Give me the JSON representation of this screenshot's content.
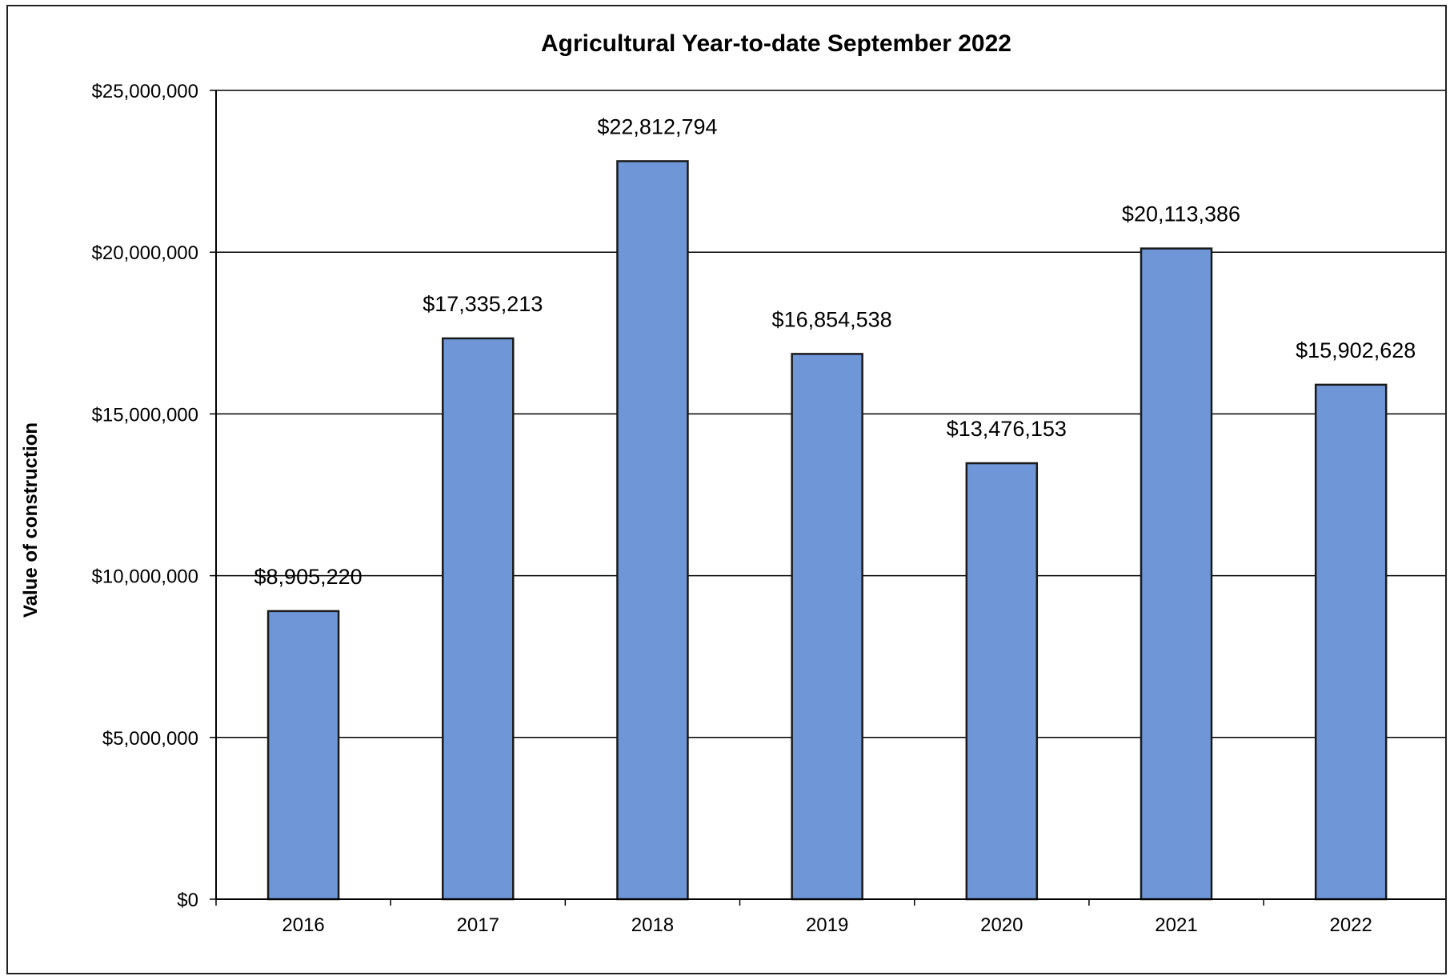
{
  "chart_data": {
    "type": "bar",
    "title": "Agricultural Year-to-date September 2022",
    "xlabel": "",
    "ylabel": "Value of construction",
    "categories": [
      "2016",
      "2017",
      "2018",
      "2019",
      "2020",
      "2021",
      "2022"
    ],
    "values": [
      8905220,
      17335213,
      22812794,
      16854538,
      13476153,
      20113386,
      15902628
    ],
    "data_labels": [
      "$8,905,220",
      "$17,335,213",
      "$22,812,794",
      "$16,854,538",
      "$13,476,153",
      "$20,113,386",
      "$15,902,628"
    ],
    "ylim": [
      0,
      25000000
    ],
    "yticks": [
      0,
      5000000,
      10000000,
      15000000,
      20000000,
      25000000
    ],
    "ytick_labels": [
      "$0",
      "$5,000,000",
      "$10,000,000",
      "$15,000,000",
      "$20,000,000",
      "$25,000,000"
    ],
    "grid": true,
    "legend": "none",
    "colors": {
      "bar_fill": "#6f97d8",
      "bar_stroke": "#1a1a1a",
      "grid": "#000000"
    }
  }
}
